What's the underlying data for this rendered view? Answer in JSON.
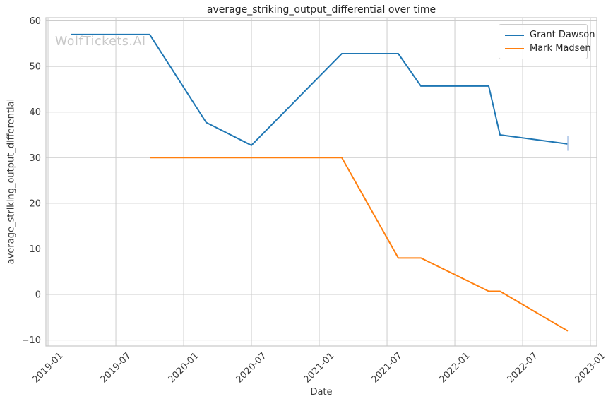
{
  "chart_data": {
    "type": "line",
    "title": "average_striking_output_differential over time",
    "xlabel": "Date",
    "ylabel": "average_striking_output_differential",
    "watermark": "WolfTickets.AI",
    "grid": true,
    "legend_position": "upper right",
    "x_origin_month": "2019-01",
    "xlim_months": [
      -0.19,
      48.56
    ],
    "ylim": [
      -11.3,
      60.7
    ],
    "x_ticks": [
      {
        "label": "2019-01",
        "month": "2019-01"
      },
      {
        "label": "2019-07",
        "month": "2019-07"
      },
      {
        "label": "2020-01",
        "month": "2020-01"
      },
      {
        "label": "2020-07",
        "month": "2020-07"
      },
      {
        "label": "2021-01",
        "month": "2021-01"
      },
      {
        "label": "2021-07",
        "month": "2021-07"
      },
      {
        "label": "2022-01",
        "month": "2022-01"
      },
      {
        "label": "2022-07",
        "month": "2022-07"
      },
      {
        "label": "2023-01",
        "month": "2023-01"
      }
    ],
    "y_ticks": [
      {
        "label": "60",
        "value": 60
      },
      {
        "label": "50",
        "value": 50
      },
      {
        "label": "40",
        "value": 40
      },
      {
        "label": "30",
        "value": 30
      },
      {
        "label": "20",
        "value": 20
      },
      {
        "label": "10",
        "value": 10
      },
      {
        "label": "0",
        "value": 0
      },
      {
        "label": "−10",
        "value": -10
      }
    ],
    "colors": {
      "grid": "#cccccc",
      "spine": "#c7c7c7",
      "tick_text": "#3b3b3b",
      "title_text": "#262626",
      "watermark": "#c8c8c8",
      "end_bar": "#aec7e8"
    },
    "series": [
      {
        "name": "Grant Dawson",
        "color": "#1f77b4",
        "points": [
          [
            "2019-03",
            57
          ],
          [
            "2019-10",
            57
          ],
          [
            "2020-03",
            37.7
          ],
          [
            "2020-07",
            32.7
          ],
          [
            "2021-03",
            52.8
          ],
          [
            "2021-08",
            52.8
          ],
          [
            "2021-10",
            45.7
          ],
          [
            "2022-04",
            45.7
          ],
          [
            "2022-05",
            35
          ],
          [
            "2022-11",
            33
          ]
        ],
        "end_bar": {
          "lo": 31.5,
          "hi": 34.7
        }
      },
      {
        "name": "Mark Madsen",
        "color": "#ff7f0e",
        "points": [
          [
            "2019-10",
            30
          ],
          [
            "2021-03",
            30
          ],
          [
            "2021-08",
            8
          ],
          [
            "2021-10",
            8
          ],
          [
            "2022-04",
            0.7
          ],
          [
            "2022-05",
            0.7
          ],
          [
            "2022-11",
            -8
          ]
        ]
      }
    ]
  }
}
